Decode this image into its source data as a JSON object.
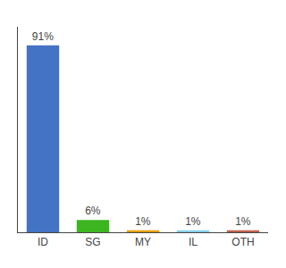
{
  "chart_data": {
    "type": "bar",
    "categories": [
      "ID",
      "SG",
      "MY",
      "IL",
      "OTH"
    ],
    "values": [
      91,
      6,
      1,
      1,
      1
    ],
    "value_labels": [
      "91%",
      "6%",
      "1%",
      "1%",
      "1%"
    ],
    "colors": [
      "#4472c4",
      "#3cb521",
      "#e5a000",
      "#87ceeb",
      "#c0614e"
    ],
    "ylim": [
      0,
      100
    ],
    "data_labels": true,
    "tick_labels": "x",
    "grid": false
  }
}
